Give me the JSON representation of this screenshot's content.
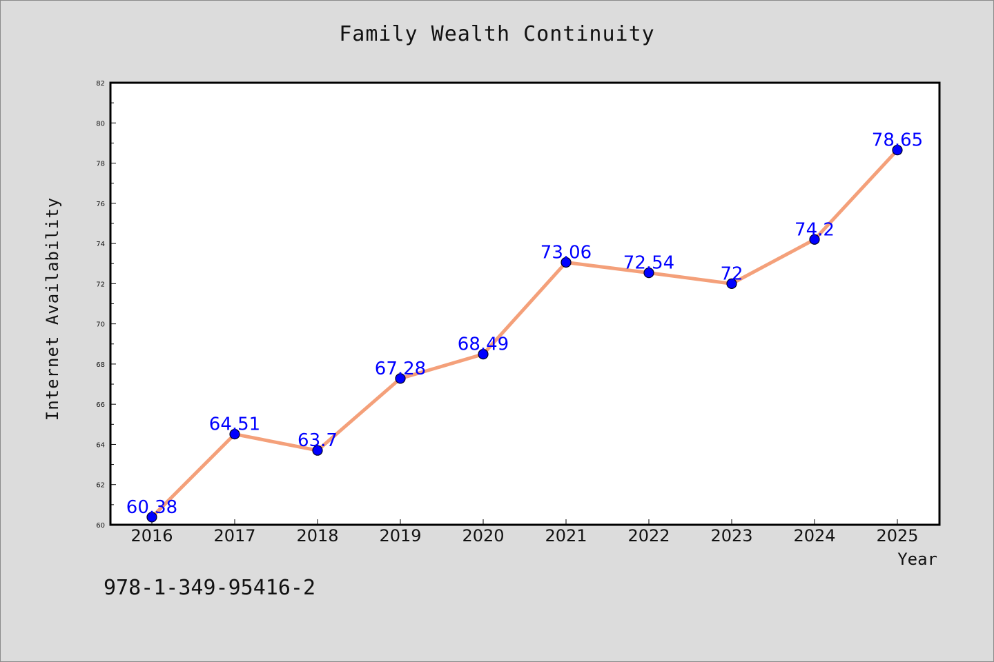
{
  "chart_data": {
    "type": "line",
    "title": "Family Wealth Continuity",
    "xlabel": "Year",
    "ylabel": "Internet Availability",
    "x": [
      "2016",
      "2017",
      "2018",
      "2019",
      "2020",
      "2021",
      "2022",
      "2023",
      "2024",
      "2025"
    ],
    "series": [
      {
        "values": [
          60.38,
          64.51,
          63.7,
          67.28,
          68.49,
          73.06,
          72.54,
          72,
          74.2,
          78.65
        ]
      }
    ],
    "data_labels": [
      "60.38",
      "64.51",
      "63.7",
      "67.28",
      "68.49",
      "73.06",
      "72.54",
      "72",
      "74.2",
      "78.65"
    ],
    "ylim": [
      60,
      82
    ],
    "yticks": [
      60,
      62,
      64,
      66,
      68,
      70,
      72,
      74,
      76,
      78,
      80,
      82
    ],
    "grid": false,
    "line_color": "#f4a07a",
    "marker_color": "#0000ff",
    "label_color": "#0000ff"
  },
  "footnote": "978-1-349-95416-2"
}
